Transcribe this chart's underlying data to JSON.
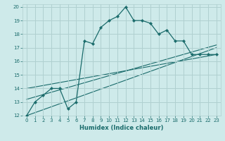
{
  "title": "",
  "xlabel": "Humidex (Indice chaleur)",
  "background_color": "#ceeaea",
  "grid_color": "#b0d0d0",
  "line_color": "#1a6b6b",
  "xlim": [
    -0.5,
    23.5
  ],
  "ylim": [
    12,
    20.2
  ],
  "xticks": [
    0,
    1,
    2,
    3,
    4,
    5,
    6,
    7,
    8,
    9,
    10,
    11,
    12,
    13,
    14,
    15,
    16,
    17,
    18,
    19,
    20,
    21,
    22,
    23
  ],
  "yticks": [
    12,
    13,
    14,
    15,
    16,
    17,
    18,
    19,
    20
  ],
  "main_series": {
    "x": [
      0,
      1,
      2,
      3,
      4,
      5,
      6,
      7,
      8,
      9,
      10,
      11,
      12,
      13,
      14,
      15,
      16,
      17,
      18,
      19,
      20,
      21,
      22,
      23
    ],
    "y": [
      12,
      13,
      13.5,
      14,
      14,
      12.5,
      13,
      17.5,
      17.3,
      18.5,
      19,
      19.3,
      20,
      19,
      19,
      18.8,
      18,
      18.3,
      17.5,
      17.5,
      16.5,
      16.5,
      16.5,
      16.5
    ]
  },
  "trend_lines": [
    {
      "x": [
        0,
        23
      ],
      "y": [
        12.0,
        17.0
      ]
    },
    {
      "x": [
        0,
        23
      ],
      "y": [
        13.2,
        17.2
      ]
    },
    {
      "x": [
        0,
        23
      ],
      "y": [
        14.0,
        16.5
      ]
    }
  ]
}
